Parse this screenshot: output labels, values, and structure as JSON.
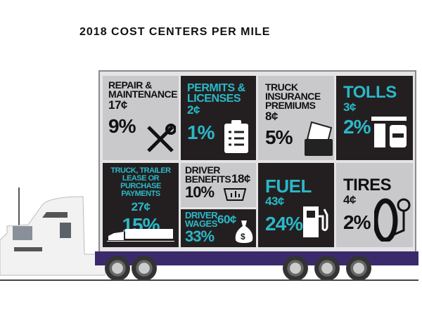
{
  "title": "2018 COST CENTERS PER MILE",
  "colors": {
    "accent": "#2bb8c8",
    "dark": "#231f20",
    "light": "#c9c9cb"
  },
  "cells": [
    {
      "label": "REPAIR & MAINTENANCE",
      "cost": "17¢",
      "percent": "9%",
      "icon": "wrench-screwdriver-icon"
    },
    {
      "label": "PERMITS & LICENSES",
      "cost": "2¢",
      "percent": "1%",
      "icon": "clipboard-icon"
    },
    {
      "label": "TRUCK INSURANCE PREMIUMS",
      "cost": "8¢",
      "percent": "5%",
      "icon": "folder-document-icon"
    },
    {
      "label": "TOLLS",
      "cost": "3¢",
      "percent": "2%",
      "icon": "toll-booth-icon"
    },
    {
      "label": "TRUCK, TRAILER LEASE OR PURCHASE PAYMENTS",
      "cost": "27¢",
      "percent": "15%",
      "icon": "truck-icon"
    },
    {
      "label": "DRIVER BENEFITS",
      "cost": "18¢",
      "percent": "10%",
      "icon": "laptop-chart-icon"
    },
    {
      "label": "DRIVER WAGES",
      "cost": "60¢",
      "percent": "33%",
      "icon": "money-bag-icon"
    },
    {
      "label": "FUEL",
      "cost": "43¢",
      "percent": "24%",
      "icon": "fuel-pump-icon"
    },
    {
      "label": "TIRES",
      "cost": "4¢",
      "percent": "2%",
      "icon": "tire-gauge-icon"
    }
  ]
}
